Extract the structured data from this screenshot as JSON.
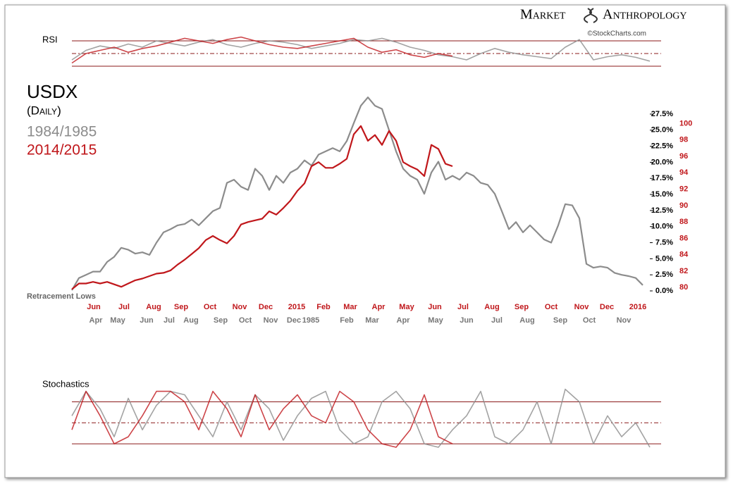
{
  "brand": {
    "first": "Market",
    "second": "Anthropology"
  },
  "source": "©StockCharts.com",
  "chart_data": [
    {
      "type": "line",
      "title": "RSI",
      "ylim": [
        25.6,
        84.4
      ],
      "xlim": [
        0,
        41
      ],
      "levels": [
        70,
        50,
        30
      ],
      "series": [
        {
          "name": "1984/1985",
          "color": "#8c8c8c",
          "values": [
            40,
            55,
            62,
            58,
            65,
            60,
            70,
            66,
            62,
            68,
            72,
            64,
            60,
            66,
            70,
            68,
            64,
            58,
            62,
            66,
            72,
            70,
            74,
            68,
            60,
            55,
            48,
            45,
            40,
            50,
            58,
            52,
            48,
            45,
            42,
            60,
            72,
            40,
            45,
            48,
            44,
            38
          ]
        },
        {
          "name": "2014/2015",
          "color": "#c0171b",
          "values": [
            35,
            50,
            55,
            60,
            52,
            58,
            62,
            68,
            74,
            70,
            66,
            72,
            76,
            70,
            64,
            60,
            58,
            62,
            66,
            70,
            74,
            60,
            52,
            56,
            48,
            44,
            50,
            46,
            null,
            null,
            null,
            null,
            null,
            null,
            null,
            null,
            null,
            null,
            null,
            null,
            null,
            null
          ]
        }
      ]
    },
    {
      "type": "line",
      "title": "USDX",
      "subtitle": "(Daily)",
      "annotation": "Retracement Lows",
      "xlim": [
        0,
        82
      ],
      "ylim": [
        0,
        31
      ],
      "y2lim": [
        79.6,
        103.9
      ],
      "yticks": [
        {
          "value": 0,
          "label": "0.0%"
        },
        {
          "value": 2.5,
          "label": "2.5%"
        },
        {
          "value": 5,
          "label": "5.0%"
        },
        {
          "value": 7.5,
          "label": "7.5%"
        },
        {
          "value": 10,
          "label": "10.0%"
        },
        {
          "value": 12.5,
          "label": "12.5%"
        },
        {
          "value": 15,
          "label": "15.0%"
        },
        {
          "value": 17.5,
          "label": "17.5%"
        },
        {
          "value": 20,
          "label": "20.0%"
        },
        {
          "value": 22.5,
          "label": "22.5%"
        },
        {
          "value": 25,
          "label": "25.0%"
        },
        {
          "value": 27.5,
          "label": "27.5%"
        }
      ],
      "y2ticks": [
        80,
        82,
        84,
        86,
        88,
        90,
        92,
        94,
        96,
        98,
        100
      ],
      "xticks": [
        {
          "value": 3.1,
          "label": "Jun"
        },
        {
          "value": 7.4,
          "label": "Jul"
        },
        {
          "value": 11.6,
          "label": "Aug"
        },
        {
          "value": 15.5,
          "label": "Sep"
        },
        {
          "value": 19.6,
          "label": "Oct"
        },
        {
          "value": 23.8,
          "label": "Nov"
        },
        {
          "value": 27.5,
          "label": "Dec"
        },
        {
          "value": 31.9,
          "label": "2015"
        },
        {
          "value": 35.7,
          "label": "Feb"
        },
        {
          "value": 39.5,
          "label": "Mar"
        },
        {
          "value": 43.5,
          "label": "Apr"
        },
        {
          "value": 47.5,
          "label": "May"
        },
        {
          "value": 51.5,
          "label": "Jun"
        },
        {
          "value": 55.5,
          "label": "Jul"
        },
        {
          "value": 59.6,
          "label": "Aug"
        },
        {
          "value": 63.8,
          "label": "Sep"
        },
        {
          "value": 68,
          "label": "Oct"
        },
        {
          "value": 72.3,
          "label": "Nov"
        },
        {
          "value": 75.9,
          "label": "Dec"
        },
        {
          "value": 80.3,
          "label": "2016"
        }
      ],
      "x2ticks": [
        {
          "value": 3.4,
          "label": "Apr"
        },
        {
          "value": 6.5,
          "label": "May"
        },
        {
          "value": 10.6,
          "label": "Jun"
        },
        {
          "value": 13.8,
          "label": "Jul"
        },
        {
          "value": 16.9,
          "label": "Aug"
        },
        {
          "value": 21.1,
          "label": "Sep"
        },
        {
          "value": 24.6,
          "label": "Oct"
        },
        {
          "value": 28.2,
          "label": "Nov"
        },
        {
          "value": 31.5,
          "label": "Dec"
        },
        {
          "value": 33.9,
          "label": "1985"
        },
        {
          "value": 39,
          "label": "Feb"
        },
        {
          "value": 42.6,
          "label": "Mar"
        },
        {
          "value": 47,
          "label": "Apr"
        },
        {
          "value": 51.6,
          "label": "May"
        },
        {
          "value": 56,
          "label": "Jun"
        },
        {
          "value": 60.3,
          "label": "Jul"
        },
        {
          "value": 64.6,
          "label": "Aug"
        },
        {
          "value": 69.3,
          "label": "Sep"
        },
        {
          "value": 73.4,
          "label": "Oct"
        },
        {
          "value": 78.3,
          "label": "Nov"
        }
      ],
      "series": [
        {
          "name": "1984/1985",
          "color": "#8c8c8c",
          "axis": "y",
          "values": [
            0.1,
            2,
            2.5,
            3,
            3,
            4.5,
            5.3,
            6.7,
            6.4,
            5.8,
            6,
            5.6,
            7.5,
            9.1,
            9.6,
            10.2,
            10.4,
            11.1,
            10.2,
            11.3,
            12.4,
            12.9,
            16.8,
            17.3,
            16.2,
            15.7,
            19,
            17.9,
            15.7,
            17.9,
            16.8,
            18.4,
            19,
            20.3,
            19.5,
            21.2,
            21.7,
            22.2,
            21.7,
            23.3,
            26.1,
            28.8,
            30.1,
            28.8,
            28.3,
            25,
            21.7,
            19,
            17.9,
            17.3,
            15.1,
            18.4,
            20.1,
            17.3,
            17.9,
            17.3,
            18.4,
            17.9,
            16.8,
            16.5,
            15.1,
            12.4,
            9.6,
            10.7,
            9.1,
            10.2,
            9.1,
            8,
            7.5,
            10.2,
            13.5,
            13.3,
            11.3,
            4.2,
            3.6,
            3.8,
            3.6,
            2.8,
            2.5,
            2.3,
            2,
            0.9
          ]
        },
        {
          "name": "2014/2015",
          "color": "#c0171b",
          "axis": "y2",
          "values": [
            79.8,
            80.5,
            80.5,
            80.7,
            80.5,
            80.7,
            80.4,
            80.1,
            80.5,
            80.9,
            81.1,
            81.4,
            81.7,
            81.8,
            82.1,
            82.8,
            83.4,
            84.1,
            84.8,
            85.8,
            86.3,
            85.8,
            85.4,
            86.3,
            87.7,
            88,
            88.2,
            88.4,
            89.3,
            88.9,
            89.7,
            90.6,
            91.8,
            92.7,
            94.8,
            95.3,
            94.6,
            94.6,
            95.1,
            95.7,
            98.7,
            99.7,
            97.9,
            98.6,
            97.4,
            99.1,
            97.9,
            95.3,
            94.8,
            94.4,
            93.6,
            97.4,
            96.9,
            95.1,
            94.8,
            null,
            null,
            null,
            null,
            null,
            null,
            null,
            null,
            null,
            null,
            null,
            null,
            null,
            null,
            null,
            null,
            null,
            null,
            null,
            null,
            null,
            null,
            null,
            null,
            null,
            null,
            null
          ]
        }
      ]
    },
    {
      "type": "line",
      "title": "Stochastics",
      "ylim": [
        10,
        100.6
      ],
      "xlim": [
        0,
        41
      ],
      "levels": [
        80,
        50,
        20
      ],
      "series": [
        {
          "name": "1984/1985",
          "color": "#8c8c8c",
          "values": [
            60,
            95,
            70,
            30,
            85,
            40,
            75,
            95,
            90,
            60,
            30,
            80,
            40,
            90,
            70,
            25,
            60,
            85,
            95,
            40,
            20,
            30,
            80,
            95,
            70,
            20,
            15,
            40,
            60,
            95,
            30,
            20,
            40,
            80,
            20,
            98,
            80,
            20,
            60,
            30,
            50,
            15
          ]
        },
        {
          "name": "2014/2015",
          "color": "#c0171b",
          "values": [
            40,
            95,
            60,
            20,
            30,
            60,
            95,
            95,
            80,
            40,
            95,
            70,
            30,
            90,
            40,
            70,
            90,
            60,
            50,
            95,
            80,
            40,
            20,
            15,
            40,
            90,
            30,
            20,
            null,
            null,
            null,
            null,
            null,
            null,
            null,
            null,
            null,
            null,
            null,
            null,
            null,
            null
          ]
        }
      ]
    }
  ]
}
